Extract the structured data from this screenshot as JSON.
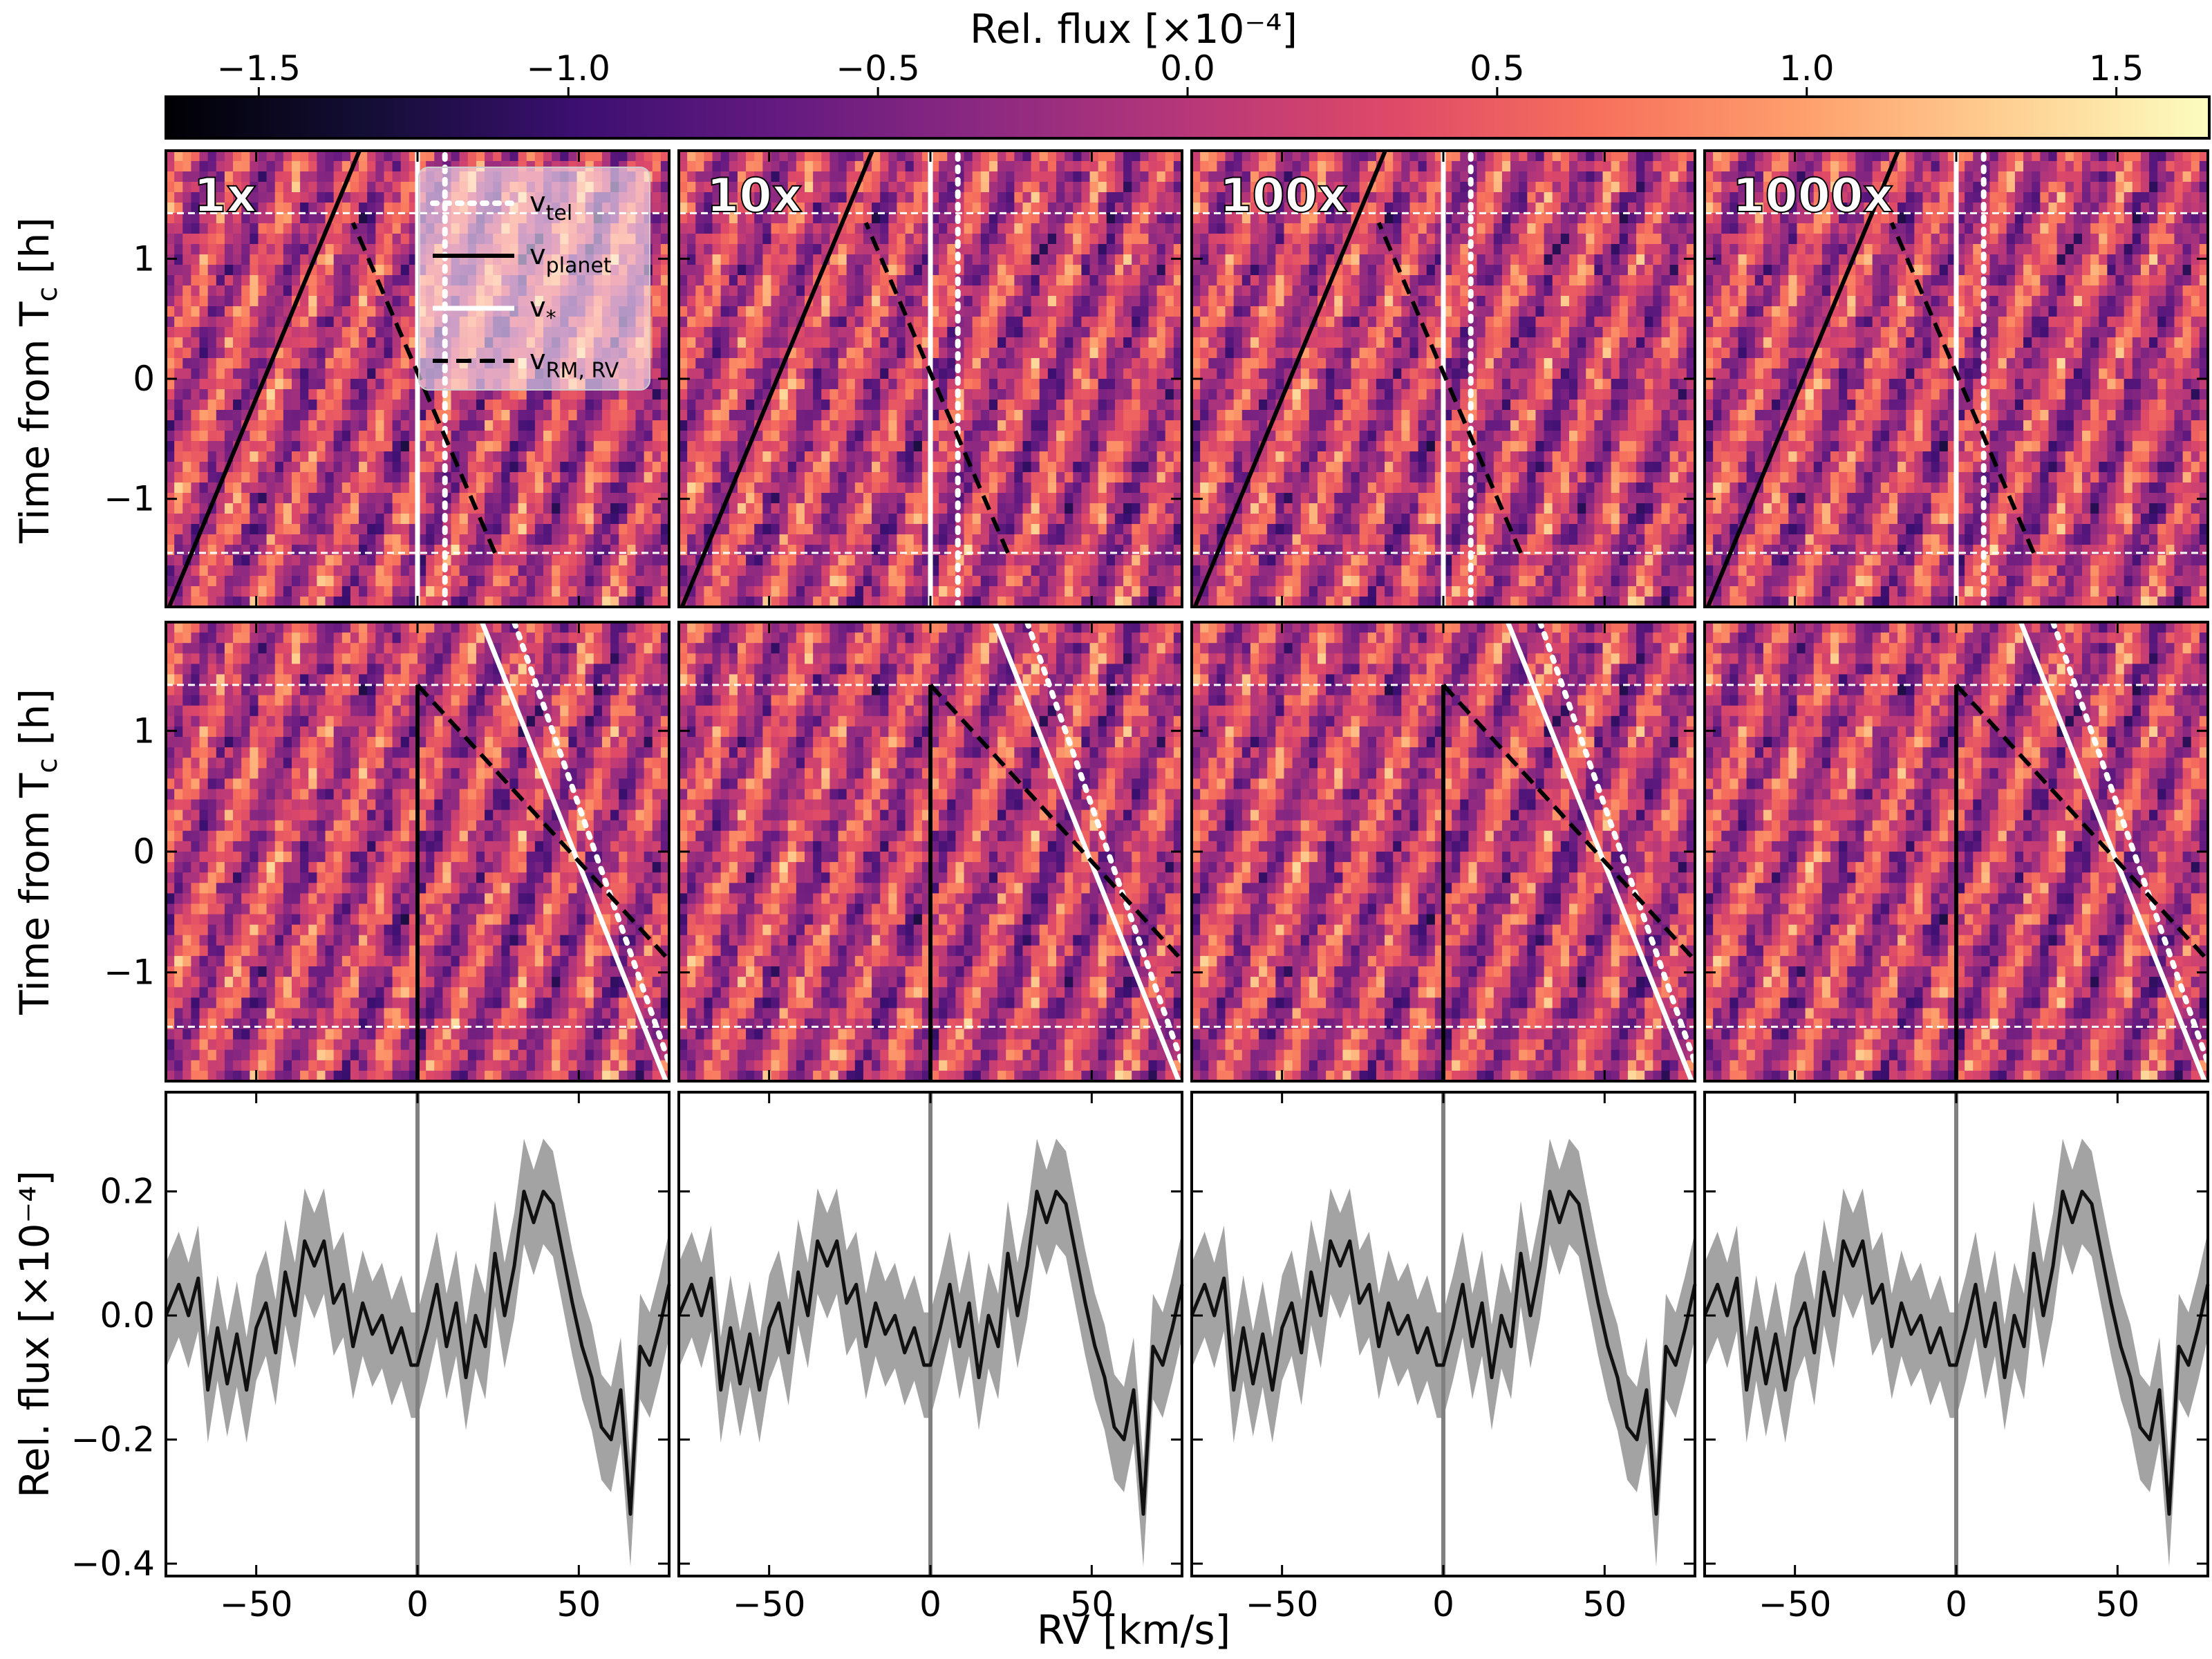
{
  "colors": {
    "colormap": [
      "#000004",
      "#140e36",
      "#3b0f70",
      "#641a80",
      "#8c2981",
      "#b73779",
      "#de4968",
      "#f7705c",
      "#fe9f6d",
      "#fecf92",
      "#fcfdbf"
    ],
    "error_band": "#999999",
    "mean_line": "#111111",
    "rest_line": "#808080"
  },
  "chart_data": {
    "type": "heatmap",
    "colorbar": {
      "label": "Rel. flux [×10⁻⁴]",
      "range": [
        -1.65,
        1.65
      ],
      "ticks": [
        -1.5,
        -1.0,
        -0.5,
        0.0,
        0.5,
        1.0,
        1.5
      ],
      "tick_labels": [
        "−1.5",
        "−1.0",
        "−0.5",
        "0.0",
        "0.5",
        "1.0",
        "1.5"
      ]
    },
    "panel_labels": [
      "1x",
      "10x",
      "100x",
      "1000x"
    ],
    "x_axis": {
      "label": "RV [km/s]",
      "range": [
        -78,
        78
      ],
      "ticks": [
        -50,
        0,
        50
      ],
      "tick_labels": [
        "−50",
        "0",
        "50"
      ]
    },
    "time_axis": {
      "label": "Time from T c [h]",
      "label_main": "Time from T",
      "label_sub": "c",
      "label_tail": " [h]",
      "range": [
        -1.9,
        1.9
      ],
      "ticks": [
        1,
        0,
        -1
      ],
      "tick_labels": [
        "1",
        "0",
        "−1"
      ],
      "transit_start": -1.45,
      "transit_end": 1.38
    },
    "flux_axis": {
      "label": "Rel. flux [×10⁻⁴]",
      "range": [
        -0.42,
        0.36
      ],
      "ticks": [
        0.2,
        0.0,
        -0.2,
        -0.4
      ],
      "tick_labels": [
        "0.2",
        "0.0",
        "−0.2",
        "−0.4"
      ]
    },
    "legend": {
      "v_tel": "v",
      "v_tel_sub": "tel",
      "v_planet": "v",
      "v_planet_sub": "planet",
      "v_star": "v",
      "v_star_sub": "*",
      "v_rm": "v",
      "v_rm_sub": "RM, RV"
    },
    "row1_lines": {
      "v_planet": {
        "t": [
          -1.9,
          1.9
        ],
        "rv": [
          -77,
          -18
        ]
      },
      "v_star": {
        "t": [
          -1.9,
          1.9
        ],
        "rv": [
          0,
          0
        ]
      },
      "v_tel": {
        "t": [
          -1.9,
          1.9
        ],
        "rv": [
          8.5,
          8.5
        ]
      },
      "v_rm": {
        "t": [
          -1.45,
          1.3
        ],
        "rv": [
          24,
          -20
        ]
      }
    },
    "row2_lines": {
      "v_planet": {
        "t": [
          -1.9,
          1.38
        ],
        "rv": [
          0,
          0
        ]
      },
      "v_star": {
        "t": [
          1.9,
          -1.9
        ],
        "rv": [
          20,
          77
        ]
      },
      "v_tel": {
        "t": [
          1.9,
          -1.9
        ],
        "rv": [
          30,
          80
        ]
      },
      "v_rm": {
        "t": [
          1.38,
          -0.9
        ],
        "rv": [
          0,
          78
        ]
      }
    },
    "mean_profile": {
      "x": [
        -78,
        -74,
        -71,
        -68,
        -65,
        -62,
        -59,
        -56,
        -53,
        -50,
        -47,
        -44,
        -41,
        -38,
        -35,
        -32,
        -29,
        -26,
        -23,
        -20,
        -17,
        -14,
        -11,
        -8,
        -5,
        -2,
        0,
        3,
        6,
        9,
        12,
        15,
        18,
        21,
        24,
        27,
        30,
        33,
        36,
        39,
        42,
        45,
        48,
        51,
        54,
        57,
        60,
        63,
        66,
        69,
        72,
        75,
        78
      ],
      "y": [
        0.0,
        0.05,
        0.0,
        0.06,
        -0.12,
        -0.02,
        -0.11,
        -0.03,
        -0.12,
        -0.02,
        0.02,
        -0.06,
        0.07,
        0.0,
        0.12,
        0.08,
        0.12,
        0.02,
        0.05,
        -0.05,
        0.02,
        -0.03,
        0.0,
        -0.06,
        -0.02,
        -0.08,
        -0.08,
        -0.02,
        0.05,
        -0.05,
        0.02,
        -0.1,
        0.0,
        -0.05,
        0.1,
        0.0,
        0.08,
        0.2,
        0.15,
        0.2,
        0.18,
        0.1,
        0.02,
        -0.05,
        -0.1,
        -0.18,
        -0.2,
        -0.12,
        -0.32,
        -0.05,
        -0.08,
        -0.02,
        0.05
      ],
      "band_halfwidth": 0.085
    }
  }
}
